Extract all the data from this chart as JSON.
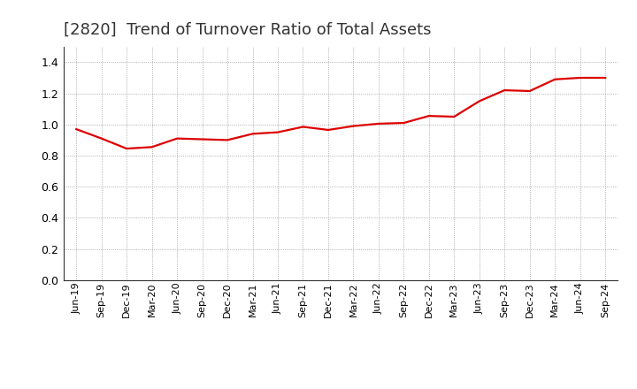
{
  "title": "[2820]  Trend of Turnover Ratio of Total Assets",
  "title_fontsize": 13,
  "title_fontweight": "normal",
  "title_color": "#333333",
  "line_color": "#dd0000",
  "line_width": 1.6,
  "background_color": "#ffffff",
  "grid_color": "#999999",
  "ylim": [
    0.0,
    1.5
  ],
  "yticks": [
    0.0,
    0.2,
    0.4,
    0.6,
    0.8,
    1.0,
    1.2,
    1.4
  ],
  "x_labels": [
    "Jun-19",
    "Sep-19",
    "Dec-19",
    "Mar-20",
    "Jun-20",
    "Sep-20",
    "Dec-20",
    "Mar-21",
    "Jun-21",
    "Sep-21",
    "Dec-21",
    "Mar-22",
    "Jun-22",
    "Sep-22",
    "Dec-22",
    "Mar-23",
    "Jun-23",
    "Sep-23",
    "Dec-23",
    "Mar-24",
    "Jun-24",
    "Sep-24"
  ],
  "values": [
    0.97,
    0.91,
    0.845,
    0.855,
    0.91,
    0.905,
    0.9,
    0.94,
    0.95,
    0.985,
    0.965,
    0.99,
    1.005,
    1.01,
    1.055,
    1.05,
    1.15,
    1.22,
    1.215,
    1.29,
    1.3,
    1.3
  ]
}
